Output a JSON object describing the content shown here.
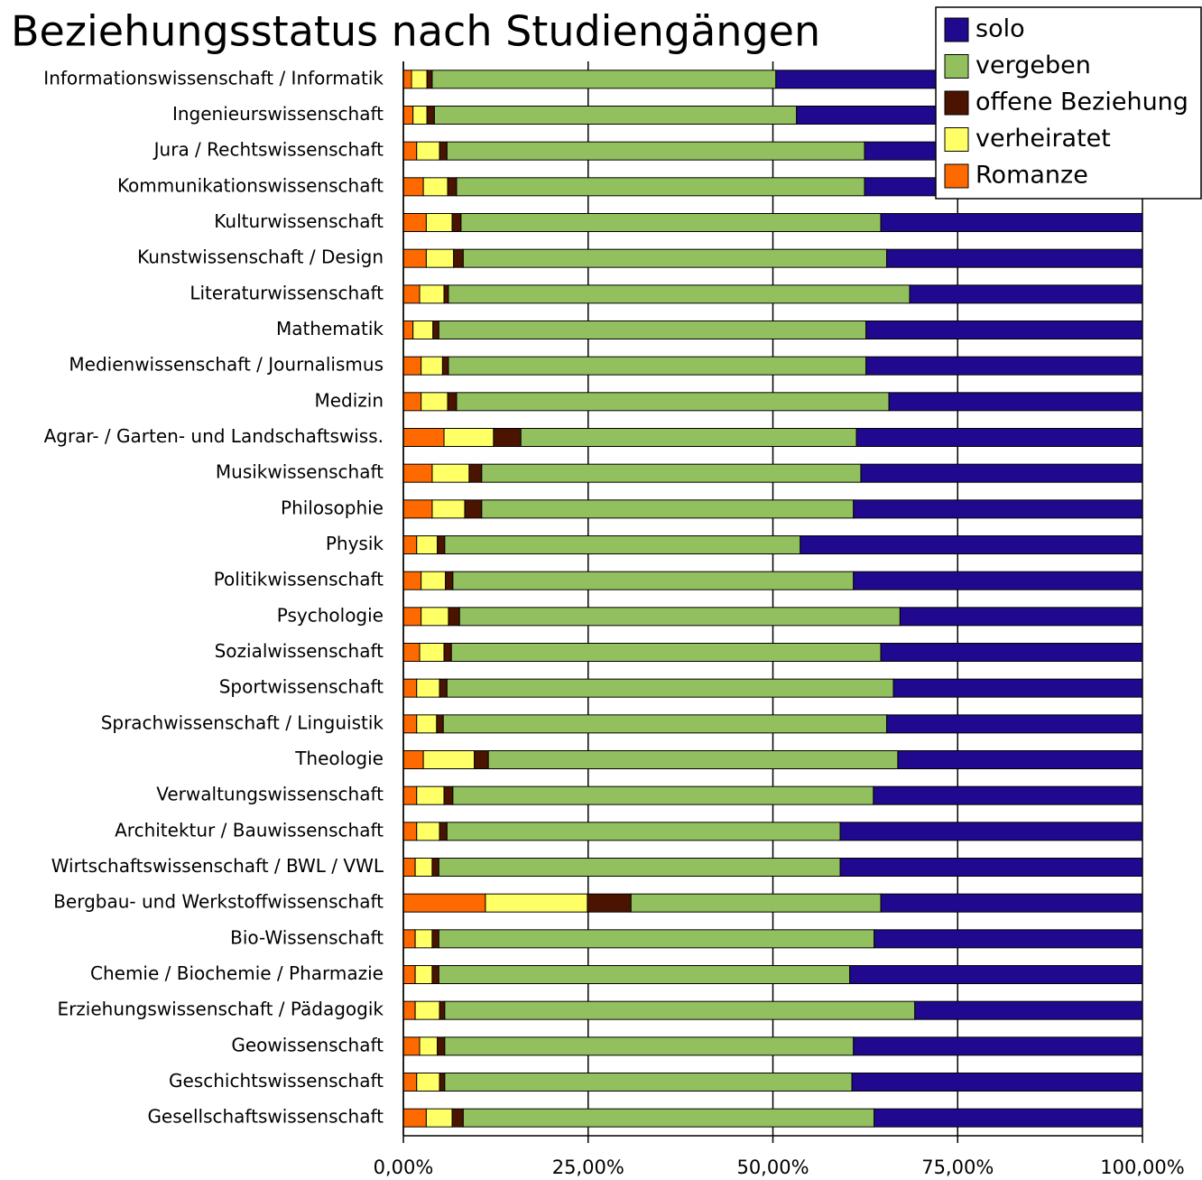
{
  "chart_data": {
    "type": "stacked_barh",
    "title": "Beziehungsstatus nach Studiengängen",
    "categories": [
      "Informationswissenschaft / Informatik",
      "Ingenieurswissenschaft",
      "Jura / Rechtswissenschaft",
      "Kommunikationswissenschaft",
      "Kulturwissenschaft",
      "Kunstwissenschaft / Design",
      "Literaturwissenschaft",
      "Mathematik",
      "Medienwissenschaft / Journalismus",
      "Medizin",
      "Agrar- / Garten- und Landschaftswiss.",
      "Musikwissenschaft",
      "Philosophie",
      "Physik",
      "Politikwissenschaft",
      "Psychologie",
      "Sozialwissenschaft",
      "Sportwissenschaft",
      "Sprachwissenschaft / Linguistik",
      "Theologie",
      "Verwaltungswissenschaft",
      "Architektur / Bauwissenschaft",
      "Wirtschaftswissenschaft / BWL / VWL",
      "Bergbau- und Werkstoffwissenschaft",
      "Bio-Wissenschaft",
      "Chemie / Biochemie / Pharmazie",
      "Erziehungswissenschaft / Pädagogik",
      "Geowissenschaft",
      "Geschichtswissenschaft",
      "Gesellschaftswissenschaft"
    ],
    "series": [
      {
        "name": "solo",
        "color": "#20098e",
        "values": [
          49.6,
          46.8,
          37.6,
          37.6,
          35.4,
          34.6,
          31.5,
          37.4,
          37.4,
          34.3,
          38.7,
          38.1,
          39.1,
          46.3,
          39.1,
          32.8,
          35.4,
          33.7,
          34.6,
          33.1,
          36.4,
          40.9,
          40.9,
          35.4,
          36.3,
          39.6,
          30.8,
          39.1,
          39.3,
          36.3
        ]
      },
      {
        "name": "vergeben",
        "color": "#93c05e",
        "values": [
          46.5,
          49.0,
          56.5,
          55.2,
          56.8,
          57.3,
          62.4,
          57.8,
          56.5,
          58.5,
          45.4,
          51.3,
          50.3,
          48.1,
          54.2,
          59.6,
          58.1,
          60.4,
          60.0,
          55.4,
          56.9,
          53.2,
          54.3,
          33.8,
          58.9,
          55.6,
          63.6,
          55.3,
          55.1,
          55.6
        ]
      },
      {
        "name": "offene Beziehung",
        "color": "#4b1400",
        "values": [
          0.7,
          1.0,
          1.0,
          1.2,
          1.2,
          1.3,
          0.6,
          0.8,
          0.8,
          1.2,
          3.7,
          1.7,
          2.3,
          1.0,
          1.0,
          1.5,
          1.0,
          1.0,
          0.9,
          1.9,
          1.2,
          1.0,
          0.9,
          5.9,
          0.9,
          0.9,
          0.7,
          1.0,
          0.7,
          1.5
        ]
      },
      {
        "name": "verheiratet",
        "color": "#ffff66",
        "values": [
          2.1,
          1.9,
          3.1,
          3.3,
          3.5,
          3.7,
          3.3,
          2.7,
          2.9,
          3.6,
          6.7,
          5.0,
          4.4,
          2.8,
          3.3,
          3.7,
          3.3,
          3.1,
          2.7,
          6.9,
          3.7,
          3.1,
          2.3,
          13.8,
          2.3,
          2.3,
          3.3,
          2.4,
          3.1,
          3.5
        ]
      },
      {
        "name": "Romanze",
        "color": "#ff6a00",
        "values": [
          1.1,
          1.3,
          1.8,
          2.7,
          3.1,
          3.1,
          2.2,
          1.3,
          2.4,
          2.4,
          5.5,
          3.9,
          3.9,
          1.8,
          2.4,
          2.4,
          2.2,
          1.8,
          1.8,
          2.7,
          1.8,
          1.8,
          1.6,
          11.1,
          1.6,
          1.6,
          1.6,
          2.2,
          1.8,
          3.1
        ]
      }
    ],
    "xlim": [
      0,
      100
    ],
    "xticks": [
      {
        "value": 0,
        "label": "0,00%"
      },
      {
        "value": 25,
        "label": "25,00%"
      },
      {
        "value": 50,
        "label": "50,00%"
      },
      {
        "value": 75,
        "label": "75,00%"
      },
      {
        "value": 100,
        "label": "100,00%"
      }
    ],
    "grid": true,
    "legend": "upper right"
  }
}
